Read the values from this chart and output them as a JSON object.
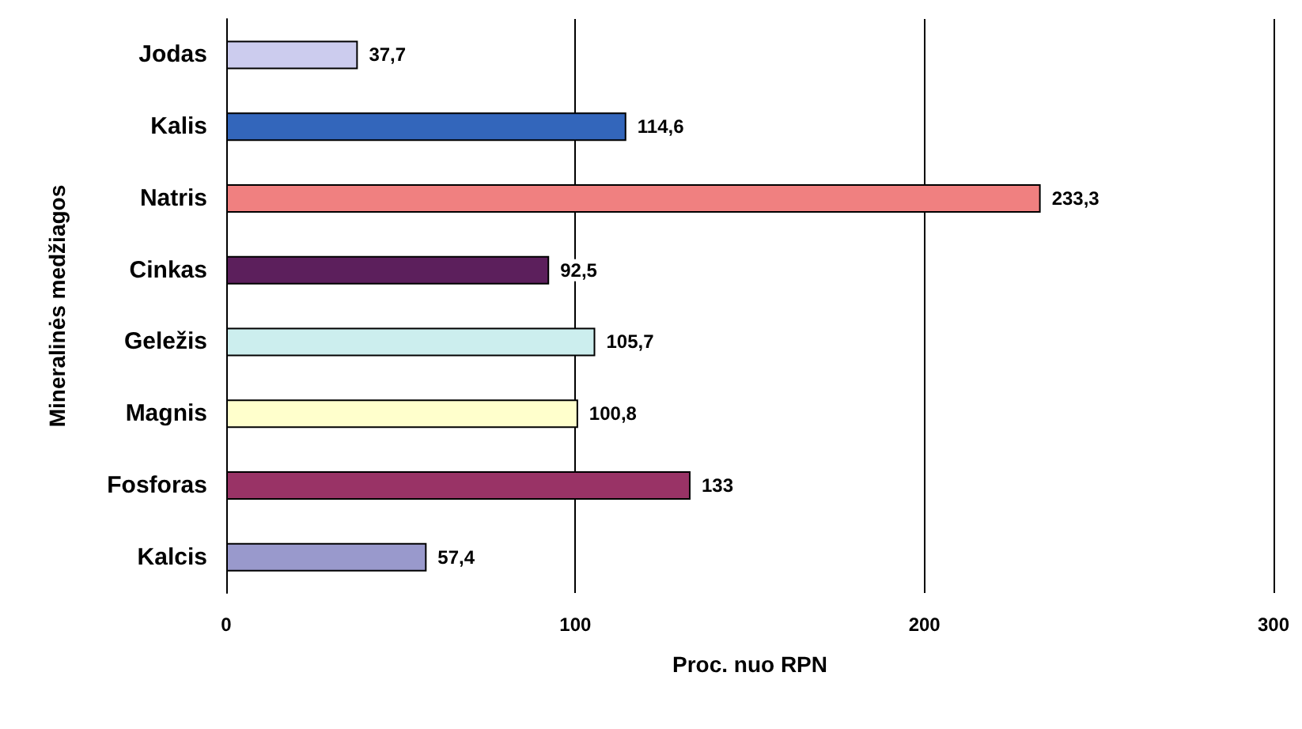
{
  "chart_data": {
    "type": "bar",
    "orientation": "horizontal",
    "xlabel": "Proc. nuo RPN",
    "ylabel": "Mineralinės medžiagos",
    "categories": [
      "Jodas",
      "Kalis",
      "Natris",
      "Cinkas",
      "Geležis",
      "Magnis",
      "Fosforas",
      "Kalcis"
    ],
    "values": [
      37.7,
      114.6,
      233.3,
      92.5,
      105.7,
      100.8,
      133,
      57.4
    ],
    "colors": [
      "#ccccee",
      "#3366bb",
      "#f08080",
      "#5c1f5c",
      "#cceeee",
      "#ffffcc",
      "#993366",
      "#9999cc"
    ],
    "value_labels": [
      "37,7",
      "114,6",
      "233,3",
      "92,5",
      "105,7",
      "100,8",
      "133",
      "57,4"
    ],
    "xlim": [
      0,
      300
    ],
    "xticks": [
      0,
      100,
      200,
      300
    ],
    "grid": "x"
  }
}
